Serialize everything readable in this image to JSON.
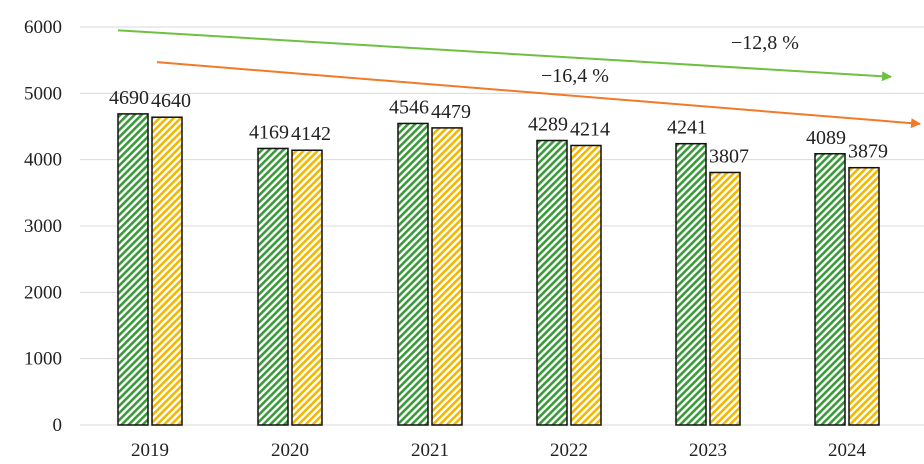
{
  "chart_data": {
    "type": "bar",
    "categories": [
      "2019",
      "2020",
      "2021",
      "2022",
      "2023",
      "2024"
    ],
    "series": [
      {
        "values": [
          4690,
          4169,
          4546,
          4289,
          4241,
          4089
        ],
        "color": "#3a9a3a",
        "pattern": "diagonal-stripes"
      },
      {
        "values": [
          4640,
          4142,
          4479,
          4214,
          3807,
          3879
        ],
        "color": "#f2b800",
        "pattern": "diagonal-stripes"
      }
    ],
    "ylim": [
      0,
      6000
    ],
    "yticks": [
      0,
      1000,
      2000,
      3000,
      4000,
      5000,
      6000
    ],
    "grid": true,
    "legend": "none",
    "annotations": [
      {
        "text": "−12,8 %",
        "color": "#70c040",
        "from": 5950,
        "to": 5250
      },
      {
        "text": "−16,4 %",
        "color": "#f07a2a",
        "from": 5470,
        "to": 4540
      }
    ]
  }
}
